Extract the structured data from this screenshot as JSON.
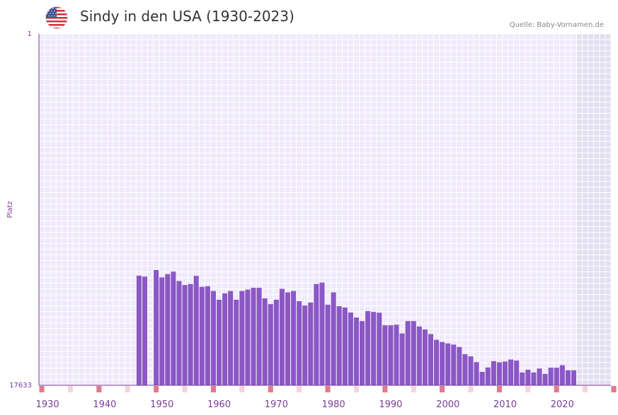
{
  "header": {
    "title": "Sindy in den USA (1930-2023)",
    "source": "Quelle: Baby-Vornamen.de"
  },
  "colors": {
    "bar": "#8b57c6",
    "plot_bg": "#efeafb",
    "future_bg": "#e3dff0",
    "grid": "#ffffff",
    "axis": "#7a3d9a",
    "decade_marker": "#e07a8c",
    "five_year_marker": "#f6d4dd"
  },
  "chart_data": {
    "type": "bar",
    "title": "Sindy in den USA (1930-2023)",
    "xlabel": "",
    "ylabel": "Platz",
    "y_axis_reversed": true,
    "ylim": [
      1,
      17633
    ],
    "y_tick_labels": [
      "1",
      "17633"
    ],
    "x_range": [
      1929,
      2029
    ],
    "x_tick_labels": [
      "1930",
      "1940",
      "1950",
      "1960",
      "1970",
      "1980",
      "1990",
      "2000",
      "2010",
      "2020"
    ],
    "x_tick_years": [
      1930,
      1940,
      1950,
      1960,
      1970,
      1980,
      1990,
      2000,
      2010,
      2020
    ],
    "future_shaded_from_year": 2023,
    "decade_marker_years": [
      1929,
      1939,
      1949,
      1959,
      1969,
      1979,
      1989,
      1999,
      2009,
      2019,
      2029
    ],
    "five_year_marker_years": [
      1934,
      1944,
      1954,
      1964,
      1974,
      1984,
      1994,
      2004,
      2014,
      2024
    ],
    "series": [
      {
        "name": "Sindy",
        "years": [
          1946,
          1947,
          1949,
          1950,
          1951,
          1952,
          1953,
          1954,
          1955,
          1956,
          1957,
          1958,
          1959,
          1960,
          1961,
          1962,
          1963,
          1964,
          1965,
          1966,
          1967,
          1968,
          1969,
          1970,
          1971,
          1972,
          1973,
          1974,
          1975,
          1976,
          1977,
          1978,
          1979,
          1980,
          1981,
          1982,
          1983,
          1984,
          1985,
          1986,
          1987,
          1988,
          1989,
          1990,
          1991,
          1992,
          1993,
          1994,
          1995,
          1996,
          1997,
          1998,
          1999,
          2000,
          2001,
          2002,
          2003,
          2004,
          2005,
          2006,
          2007,
          2008,
          2009,
          2010,
          2011,
          2012,
          2013,
          2014,
          2015,
          2016,
          2017,
          2018,
          2019,
          2020,
          2021,
          2022
        ],
        "values": [
          12130,
          12180,
          11850,
          12220,
          12050,
          11930,
          12400,
          12600,
          12550,
          12140,
          12690,
          12660,
          12900,
          13340,
          13020,
          12900,
          13340,
          12900,
          12830,
          12740,
          12740,
          13270,
          13560,
          13340,
          12790,
          12970,
          12900,
          13410,
          13630,
          13480,
          12550,
          12480,
          13590,
          12970,
          13660,
          13730,
          13980,
          14230,
          14410,
          13910,
          13950,
          13990,
          14620,
          14620,
          14590,
          15030,
          14410,
          14410,
          14680,
          14830,
          15060,
          15350,
          15460,
          15530,
          15590,
          15710,
          16070,
          16180,
          16470,
          16960,
          16740,
          16420,
          16480,
          16440,
          16340,
          16390,
          16990,
          16850,
          16990,
          16790,
          17060,
          16750,
          16750,
          16620,
          16880,
          16880
        ]
      }
    ]
  }
}
